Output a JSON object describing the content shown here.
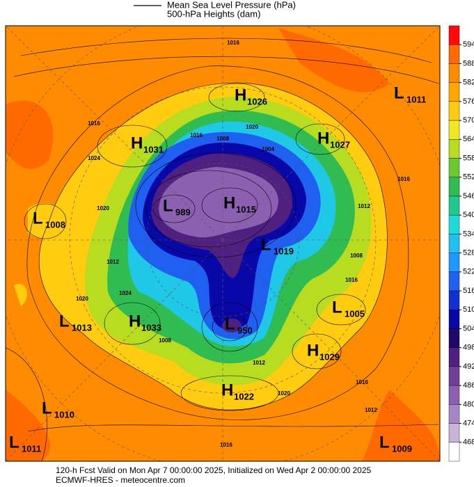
{
  "header": {
    "legend": [
      "Mean Sea Level Pressure (hPa)",
      "500-hPa Heights (dam)"
    ]
  },
  "colorbar": {
    "ticks": [
      594,
      588,
      582,
      576,
      570,
      564,
      558,
      552,
      546,
      540,
      534,
      528,
      522,
      516,
      510,
      504,
      498,
      492,
      486,
      480,
      474,
      468
    ],
    "colors": [
      "#ff0a0a",
      "#ff6a00",
      "#ff8c00",
      "#ffa800",
      "#ffcc10",
      "#f0e820",
      "#b8dc20",
      "#6cc830",
      "#30bc50",
      "#20c890",
      "#20dcd8",
      "#20c0f0",
      "#2098ff",
      "#2060f0",
      "#1030d0",
      "#0808a8",
      "#200868",
      "#502080",
      "#704098",
      "#8c60b0",
      "#a888c4",
      "#c8b4d8",
      "#ffffff"
    ]
  },
  "centers": [
    {
      "kind": "H",
      "value": 1026
    },
    {
      "kind": "H",
      "value": 1027
    },
    {
      "kind": "L",
      "value": 1011
    },
    {
      "kind": "H",
      "value": 1031
    },
    {
      "kind": "L",
      "value": 1008
    },
    {
      "kind": "L",
      "value": 989
    },
    {
      "kind": "H",
      "value": 1015
    },
    {
      "kind": "L",
      "value": 1019
    },
    {
      "kind": "L",
      "value": 1005
    },
    {
      "kind": "H",
      "value": 1033
    },
    {
      "kind": "L",
      "value": 1013
    },
    {
      "kind": "L",
      "value": 950
    },
    {
      "kind": "H",
      "value": 1029
    },
    {
      "kind": "H",
      "value": 1022
    },
    {
      "kind": "L",
      "value": 1010
    },
    {
      "kind": "L",
      "value": 1011
    },
    {
      "kind": "L",
      "value": 1009
    }
  ],
  "contour_labels": [
    1016,
    1016,
    1020,
    1016,
    1008,
    1004,
    1024,
    1020,
    1012,
    1016,
    1008,
    1016,
    1024,
    1020,
    1012,
    1008,
    1012,
    1020,
    1016,
    1012,
    1016
  ],
  "footer": [
    "120-h Fcst Valid on Mon Apr  7 00:00:00 2025, Initialized on Wed Apr  2 00:00:00 2025",
    "ECMWF-HRES  - meteocentre.com"
  ]
}
